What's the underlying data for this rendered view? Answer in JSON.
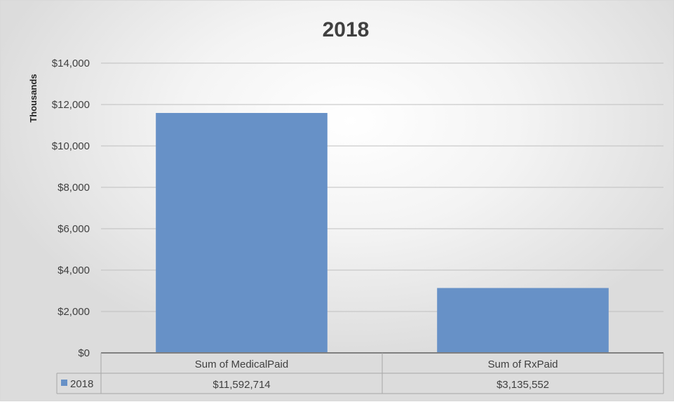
{
  "chart_data": {
    "type": "bar",
    "title": "2018",
    "ylabel": "Thousands",
    "xlabel": "",
    "categories": [
      "Sum of MedicalPaid",
      "Sum of RxPaid"
    ],
    "series": [
      {
        "name": "2018",
        "values": [
          11592.714,
          3135.552
        ],
        "table_labels": [
          "$11,592,714",
          "$3,135,552"
        ],
        "color": "#6791c7"
      }
    ],
    "yticks": [
      "$0",
      "$2,000",
      "$4,000",
      "$6,000",
      "$8,000",
      "$10,000",
      "$12,000",
      "$14,000"
    ],
    "ylim": [
      0,
      14000
    ],
    "grid": true,
    "legend": "data-table",
    "colors": {
      "gridline": "#bfbfbf",
      "table_border": "#a6a6a6"
    }
  }
}
